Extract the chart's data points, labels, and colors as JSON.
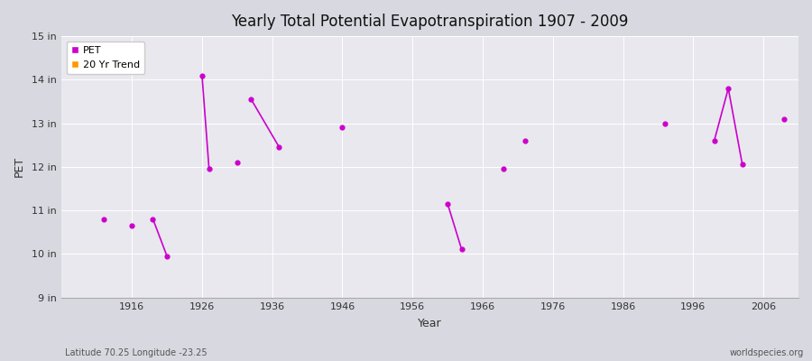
{
  "title": "Yearly Total Potential Evapotranspiration 1907 - 2009",
  "xlabel": "Year",
  "ylabel": "PET",
  "footnote_left": "Latitude 70.25 Longitude -23.25",
  "footnote_right": "worldspecies.org",
  "xlim": [
    1906,
    2011
  ],
  "ylim": [
    9,
    15
  ],
  "yticks": [
    9,
    10,
    11,
    12,
    13,
    14,
    15
  ],
  "ytick_labels": [
    "9 in",
    "10 in",
    "11 in",
    "12 in",
    "13 in",
    "14 in",
    "15 in"
  ],
  "xticks": [
    1916,
    1926,
    1936,
    1946,
    1956,
    1966,
    1976,
    1986,
    1996,
    2006
  ],
  "outer_bg": "#d8d8e0",
  "plot_bg": "#e8e8ee",
  "grid_color": "#ffffff",
  "line_color": "#cc00cc",
  "trend_color": "#ff9900",
  "pet_isolated": [
    [
      1912,
      10.8
    ],
    [
      1916,
      10.65
    ],
    [
      1931,
      12.1
    ],
    [
      1946,
      12.9
    ],
    [
      1969,
      11.95
    ],
    [
      1972,
      12.6
    ],
    [
      1992,
      13.0
    ],
    [
      2009,
      13.1
    ]
  ],
  "pet_segments": [
    [
      [
        1919,
        10.8
      ],
      [
        1921,
        9.95
      ]
    ],
    [
      [
        1926,
        14.1
      ],
      [
        1927,
        11.95
      ]
    ],
    [
      [
        1933,
        13.55
      ],
      [
        1937,
        12.45
      ]
    ],
    [
      [
        1961,
        11.15
      ],
      [
        1963,
        10.1
      ]
    ],
    [
      [
        1999,
        12.6
      ],
      [
        2001,
        13.8
      ],
      [
        2003,
        12.05
      ]
    ]
  ],
  "legend_pet_color": "#cc00cc",
  "legend_trend_color": "#ff9900"
}
